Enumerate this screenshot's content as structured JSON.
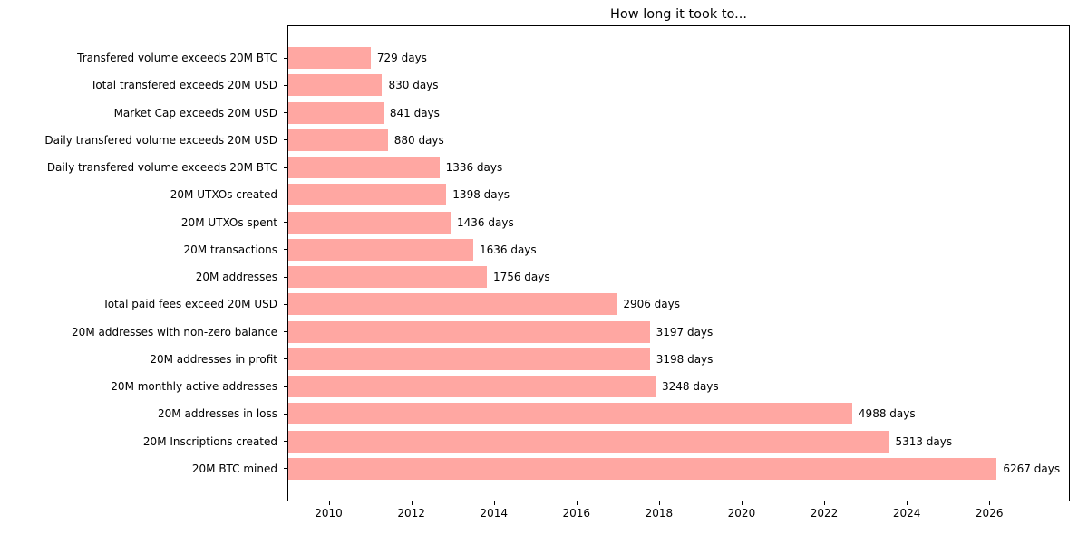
{
  "chart_data": {
    "type": "bar",
    "orientation": "horizontal",
    "title": "How long it took to...",
    "categories": [
      "Transfered volume exceeds 20M BTC",
      "Total transfered exceeds 20M USD",
      "Market Cap exceeds 20M USD",
      "Daily transfered volume exceeds 20M USD",
      "Daily transfered volume exceeds 20M BTC",
      "20M UTXOs created",
      "20M UTXOs spent",
      "20M transactions",
      "20M addresses",
      "Total paid fees exceed 20M USD",
      "20M addresses with non-zero balance",
      "20M addresses in profit",
      "20M monthly active addresses",
      "20M addresses in loss",
      "20M Inscriptions created",
      "20M BTC mined"
    ],
    "values": [
      729,
      830,
      841,
      880,
      1336,
      1398,
      1436,
      1636,
      1756,
      2906,
      3197,
      3198,
      3248,
      4988,
      5313,
      6267
    ],
    "bar_labels": [
      "729 days",
      "830 days",
      "841 days",
      "880 days",
      "1336 days",
      "1398 days",
      "1436 days",
      "1636 days",
      "1756 days",
      "2906 days",
      "3197 days",
      "3198 days",
      "3248 days",
      "4988 days",
      "5313 days",
      "6267 days"
    ],
    "unit": "days",
    "x_tick_labels": [
      "2010",
      "2012",
      "2014",
      "2016",
      "2018",
      "2020",
      "2022",
      "2024",
      "2026"
    ],
    "x_ticks": [
      2010,
      2012,
      2014,
      2016,
      2018,
      2020,
      2022,
      2024,
      2026
    ],
    "xlim_years": [
      2009.0,
      2027.95
    ],
    "days_per_year": 365.25,
    "bar_color": "#ffa7a2",
    "background_color": "#ffffff",
    "text_color": "#000000",
    "grid": false,
    "legend_position": "none"
  }
}
